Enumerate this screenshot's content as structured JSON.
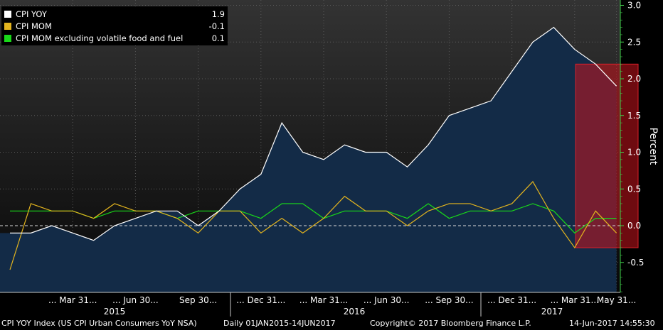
{
  "chart_data": {
    "type": "area",
    "ylabel": "Percent",
    "ylim": [
      -0.9,
      3.1
    ],
    "y_ticks": [
      3.0,
      2.5,
      2.0,
      1.5,
      1.0,
      0.5,
      0.0,
      -0.5
    ],
    "x_tick_labels": [
      "Mar 31",
      "Jun 30",
      "Sep 30",
      "Dec 31",
      "Mar 31",
      "Jun 30",
      "Sep 30",
      "Dec 31",
      "Mar 31",
      "May 31"
    ],
    "x_tick_display": [
      "... Mar 31...",
      "... Jun 30...",
      "Sep 30...",
      "... Dec 31...",
      "... Mar 31...",
      "... Jun 30...",
      "... Sep 30...",
      "... Dec 31...",
      "... Mar 31...",
      "May 31..."
    ],
    "x_tick_months": [
      "2015-03",
      "2015-06",
      "2015-09",
      "2015-12",
      "2016-03",
      "2016-06",
      "2016-09",
      "2016-12",
      "2017-03",
      "2017-05"
    ],
    "years": [
      "2015",
      "2016",
      "2017"
    ],
    "x": [
      "2014-12",
      "2015-01",
      "2015-02",
      "2015-03",
      "2015-04",
      "2015-05",
      "2015-06",
      "2015-07",
      "2015-08",
      "2015-09",
      "2015-10",
      "2015-11",
      "2015-12",
      "2016-01",
      "2016-02",
      "2016-03",
      "2016-04",
      "2016-05",
      "2016-06",
      "2016-07",
      "2016-08",
      "2016-09",
      "2016-10",
      "2016-11",
      "2016-12",
      "2017-01",
      "2017-02",
      "2017-03",
      "2017-04",
      "2017-05"
    ],
    "series": [
      {
        "name": "CPI YOY",
        "color": "#ffffff",
        "fill": true,
        "values": [
          -0.1,
          -0.1,
          -0.0,
          -0.1,
          -0.2,
          -0.0,
          0.1,
          0.2,
          0.2,
          -0.0,
          0.2,
          0.5,
          0.7,
          1.4,
          1.0,
          0.9,
          1.1,
          1.0,
          1.0,
          0.8,
          1.1,
          1.5,
          1.6,
          1.7,
          2.1,
          2.5,
          2.7,
          2.4,
          2.2,
          1.9
        ]
      },
      {
        "name": "CPI MOM",
        "color": "#e3b41e",
        "fill": false,
        "values": [
          -0.6,
          0.3,
          0.2,
          0.2,
          0.1,
          0.3,
          0.2,
          0.2,
          0.1,
          -0.1,
          0.2,
          0.2,
          -0.1,
          0.1,
          -0.1,
          0.1,
          0.4,
          0.2,
          0.2,
          0.0,
          0.2,
          0.3,
          0.3,
          0.2,
          0.3,
          0.6,
          0.1,
          -0.3,
          0.2,
          -0.1
        ]
      },
      {
        "name": "CPI MOM excluding volatile food and fuel",
        "color": "#19d919",
        "fill": false,
        "values": [
          0.2,
          0.2,
          0.2,
          0.2,
          0.1,
          0.2,
          0.2,
          0.2,
          0.1,
          0.2,
          0.2,
          0.2,
          0.1,
          0.3,
          0.3,
          0.1,
          0.2,
          0.2,
          0.2,
          0.1,
          0.3,
          0.1,
          0.2,
          0.2,
          0.2,
          0.3,
          0.2,
          -0.1,
          0.1,
          0.1
        ]
      }
    ],
    "legend_values": [
      "1.9",
      "-0.1",
      "0.1"
    ],
    "highlight": {
      "x_start": "2017-04",
      "x_end": "2017-06",
      "y_start": -0.3,
      "y_end": 2.2,
      "color": "#c8141e"
    },
    "reference_line": {
      "y": 0.0,
      "style": "dashed"
    },
    "colors": {
      "background_top": "#333333",
      "background_bottom": "#080808",
      "area": "#132b47",
      "axis": "#3fd04a",
      "grid": "#5a5a5a"
    }
  },
  "legend": {
    "items": [
      {
        "name": "CPI YOY",
        "value": "1.9",
        "color": "#ffffff"
      },
      {
        "name": "CPI MOM",
        "value": "-0.1",
        "color": "#e3b41e"
      },
      {
        "name": "CPI MOM excluding volatile food and fuel",
        "value": "0.1",
        "color": "#19d919"
      }
    ]
  },
  "footer": {
    "index": "CPI YOY Index (US CPI Urban Consumers YoY NSA)",
    "range": "Daily 01JAN2015-14JUN2017",
    "copyright": "Copyright© 2017 Bloomberg Finance L.P.",
    "timestamp": "14-Jun-2017 14:55:30"
  }
}
